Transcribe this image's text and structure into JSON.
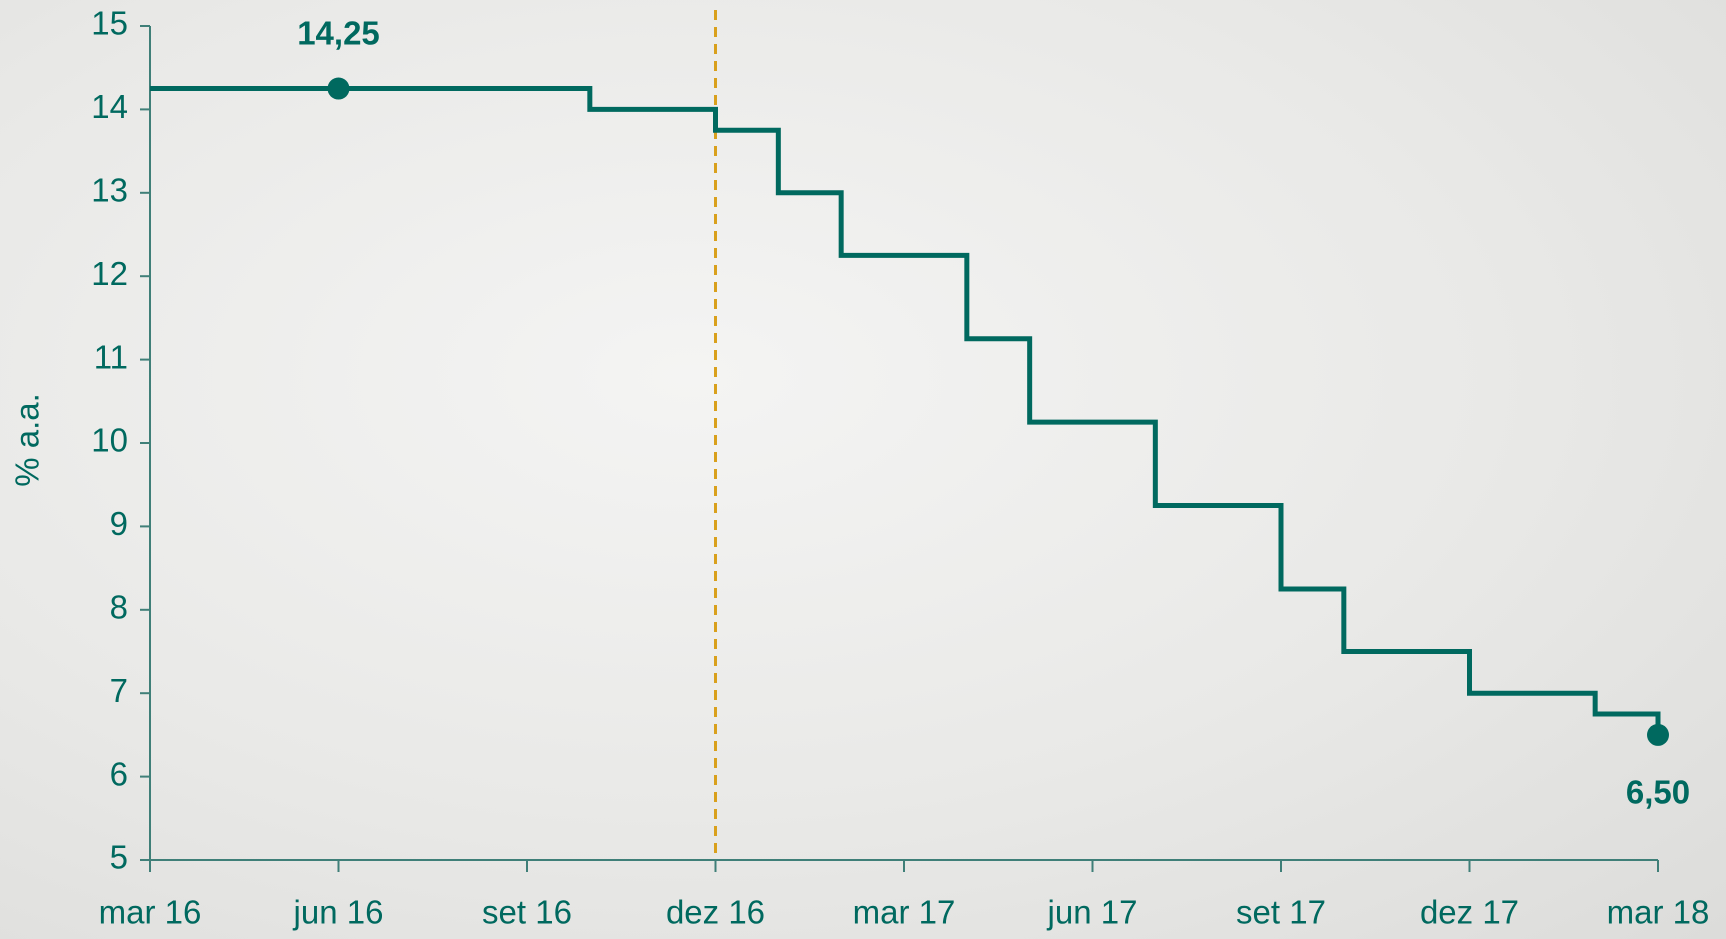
{
  "chart_data": {
    "type": "line",
    "step": "post",
    "y_label": "% a.a.",
    "x": [
      "2016-03",
      "2016-10",
      "2016-12",
      "2017-01",
      "2017-02",
      "2017-04",
      "2017-05",
      "2017-07",
      "2017-09",
      "2017-10",
      "2017-12",
      "2018-02",
      "2018-03"
    ],
    "values": [
      14.25,
      14.0,
      13.75,
      13.0,
      12.25,
      11.25,
      10.25,
      9.25,
      8.25,
      7.5,
      7.0,
      6.75,
      6.5
    ],
    "color": "#00695f",
    "xlim": [
      "2016-03",
      "2018-03"
    ],
    "xticks": [
      {
        "value": "2016-03",
        "label": "mar 16"
      },
      {
        "value": "2016-06",
        "label": "jun 16"
      },
      {
        "value": "2016-09",
        "label": "set 16"
      },
      {
        "value": "2016-12",
        "label": "dez 16"
      },
      {
        "value": "2017-03",
        "label": "mar 17"
      },
      {
        "value": "2017-06",
        "label": "jun 17"
      },
      {
        "value": "2017-09",
        "label": "set 17"
      },
      {
        "value": "2017-12",
        "label": "dez 17"
      },
      {
        "value": "2018-03",
        "label": "mar 18"
      }
    ],
    "ylim": [
      5,
      15
    ],
    "yticks": [
      5,
      6,
      7,
      8,
      9,
      10,
      11,
      12,
      13,
      14,
      15
    ],
    "grid": false,
    "vline": {
      "x": "2016-12",
      "color": "#d9a01c"
    },
    "annotations": [
      {
        "text": "14,25",
        "x": "2016-06",
        "y": 14.25,
        "position": "above"
      },
      {
        "text": "6,50",
        "x": "2018-03",
        "y": 6.5,
        "position": "below"
      }
    ]
  }
}
